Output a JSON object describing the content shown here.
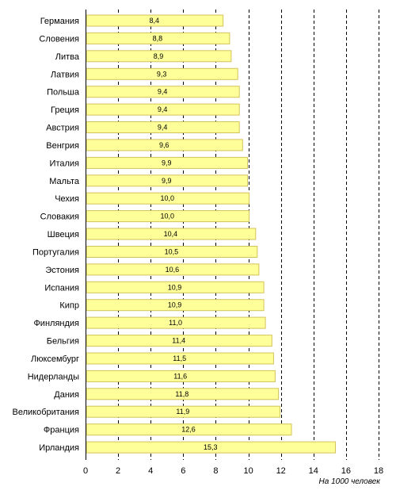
{
  "chart_data": {
    "type": "bar",
    "orientation": "horizontal",
    "categories": [
      "Германия",
      "Словения",
      "Литва",
      "Латвия",
      "Польша",
      "Греция",
      "Австрия",
      "Венгрия",
      "Италия",
      "Мальта",
      "Чехия",
      "Словакия",
      "Швеция",
      "Португалия",
      "Эстония",
      "Испания",
      "Кипр",
      "Финляндия",
      "Бельгия",
      "Люксембург",
      "Нидерланды",
      "Дания",
      "Великобритания",
      "Франция",
      "Ирландия"
    ],
    "values": [
      8.4,
      8.8,
      8.9,
      9.3,
      9.4,
      9.4,
      9.4,
      9.6,
      9.9,
      9.9,
      10.0,
      10.0,
      10.4,
      10.5,
      10.6,
      10.9,
      10.9,
      11.0,
      11.4,
      11.5,
      11.6,
      11.8,
      11.9,
      12.6,
      15.3
    ],
    "value_labels": [
      "8,4",
      "8,8",
      "8,9",
      "9,3",
      "9,4",
      "9,4",
      "9,4",
      "9,6",
      "9,9",
      "9,9",
      "10,0",
      "10,0",
      "10,4",
      "10,5",
      "10,6",
      "10,9",
      "10,9",
      "11,0",
      "11,4",
      "11,5",
      "11,6",
      "11,8",
      "11,9",
      "12,6",
      "15,3"
    ],
    "xlim": [
      0,
      18
    ],
    "xticks": [
      0,
      2,
      4,
      6,
      8,
      10,
      12,
      14,
      16,
      18
    ],
    "xtick_labels": [
      "0",
      "2",
      "4",
      "6",
      "8",
      "10",
      "12",
      "14",
      "16",
      "18"
    ],
    "unit_label": "На 1000 человек",
    "grid": "vertical dashed",
    "colors": {
      "bar_fill": "#ffff99",
      "bar_stroke": "#d4c25a",
      "grid": "#000000"
    }
  }
}
